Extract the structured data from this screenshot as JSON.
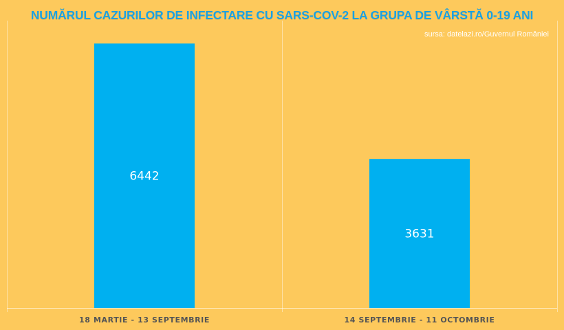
{
  "colors": {
    "background": "#FDC95C",
    "bar": "#00B0F0",
    "title": "#1BA1E2",
    "source": "#FFFFFF",
    "category_label": "#555555",
    "data_label": "#FFFFFF"
  },
  "chart_data": {
    "type": "bar",
    "title": "NUMĂRUL CAZURILOR DE INFECTARE CU SARS-COV-2 LA GRUPA DE VÂRSTĂ 0-19 ANI",
    "source": "sursa: datelazi.ro/Guvernul României",
    "categories": [
      "18 MARTIE - 13 SEPTEMBRIE",
      "14 SEPTEMBRIE - 11 OCTOMBRIE"
    ],
    "values": [
      6442,
      3631
    ],
    "data_labels": [
      "6442",
      "3631"
    ],
    "xlabel": "",
    "ylabel": "",
    "ylim": [
      0,
      7000
    ],
    "grid": false,
    "legend": "none"
  }
}
